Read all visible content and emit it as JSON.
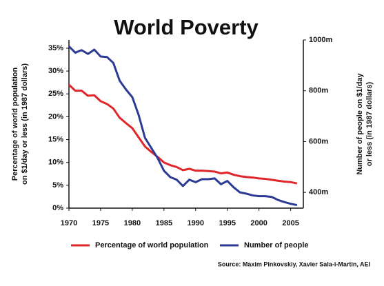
{
  "chart_data": {
    "type": "line",
    "title": "World Poverty",
    "ylabel": [
      "Percentage of world population",
      "on $1/day or less (in 1987 dollars)"
    ],
    "y2label": [
      "Number of people on $1/day",
      "or less (in  1987 dollars)"
    ],
    "source": "Source: Maxim Pinkovskiy, Xavier Sala-i-Martin, AEI",
    "x": [
      1970,
      1971,
      1972,
      1973,
      1974,
      1975,
      1976,
      1977,
      1978,
      1979,
      1980,
      1981,
      1982,
      1983,
      1984,
      1985,
      1986,
      1987,
      1988,
      1989,
      1990,
      1991,
      1992,
      1993,
      1994,
      1995,
      1996,
      1997,
      1998,
      1999,
      2000,
      2001,
      2002,
      2003,
      2004,
      2005,
      2006
    ],
    "series": [
      {
        "name": "Percentage of world population",
        "color": "#e0262b",
        "axis": "y",
        "values": [
          27,
          25.7,
          25.7,
          24.6,
          24.7,
          23.4,
          22.8,
          21.8,
          19.8,
          18.6,
          17.5,
          15.5,
          13.5,
          12.3,
          11.2,
          10.0,
          9.4,
          9.0,
          8.3,
          8.6,
          8.2,
          8.2,
          8.1,
          8.0,
          7.6,
          7.8,
          7.3,
          7.0,
          6.8,
          6.7,
          6.5,
          6.4,
          6.2,
          6.0,
          5.8,
          5.7,
          5.4
        ]
      },
      {
        "name": "Number of people",
        "color": "#2b3a94",
        "axis": "y2",
        "values": [
          975,
          950,
          960,
          945,
          962,
          935,
          933,
          910,
          840,
          805,
          775,
          705,
          615,
          575,
          535,
          485,
          460,
          450,
          425,
          450,
          440,
          452,
          452,
          455,
          432,
          445,
          420,
          400,
          395,
          388,
          385,
          385,
          382,
          370,
          362,
          355,
          350
        ]
      }
    ],
    "xlim": [
      1970,
      2007
    ],
    "xticks": [
      1970,
      1975,
      1980,
      1985,
      1990,
      1995,
      2000,
      2005
    ],
    "ylim": [
      0,
      36.8
    ],
    "yticks": [
      {
        "value": 0,
        "label": "0%"
      },
      {
        "value": 5,
        "label": "5%"
      },
      {
        "value": 10,
        "label": "10%"
      },
      {
        "value": 15,
        "label": "15%"
      },
      {
        "value": 20,
        "label": "20%"
      },
      {
        "value": 25,
        "label": "25%"
      },
      {
        "value": 30,
        "label": "30%"
      },
      {
        "value": 35,
        "label": "35%"
      }
    ],
    "y2lim": [
      338,
      1000
    ],
    "y2ticks": [
      {
        "value": 400,
        "label": "400m"
      },
      {
        "value": 600,
        "label": "600m"
      },
      {
        "value": 800,
        "label": "800m"
      },
      {
        "value": 1000,
        "label": "1000m"
      }
    ],
    "grid": false
  }
}
